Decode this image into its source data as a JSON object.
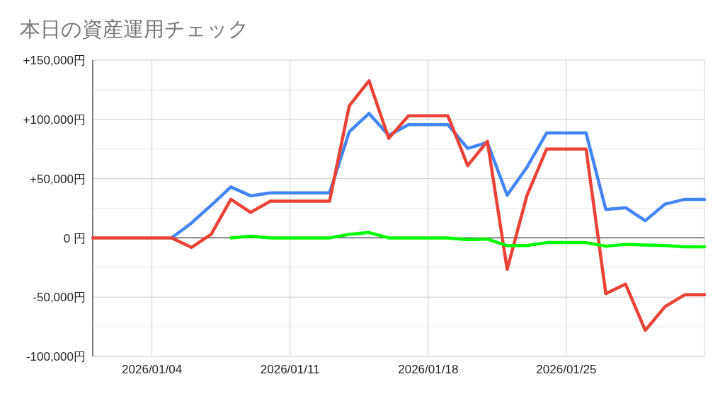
{
  "chart_data": {
    "type": "line",
    "title": "本日の資産運用チェック",
    "x": [
      "2026-01-01",
      "2026-01-02",
      "2026-01-03",
      "2026-01-04",
      "2026-01-05",
      "2026-01-06",
      "2026-01-07",
      "2026-01-08",
      "2026-01-09",
      "2026-01-10",
      "2026-01-11",
      "2026-01-12",
      "2026-01-13",
      "2026-01-14",
      "2026-01-15",
      "2026-01-16",
      "2026-01-17",
      "2026-01-18",
      "2026-01-19",
      "2026-01-20",
      "2026-01-21",
      "2026-01-22",
      "2026-01-23",
      "2026-01-24",
      "2026-01-25",
      "2026-01-26",
      "2026-01-27",
      "2026-01-28",
      "2026-01-29",
      "2026-01-30",
      "2026-01-31",
      "2026-02-01"
    ],
    "series": [
      {
        "color": "#4285f4",
        "values": [
          null,
          null,
          null,
          null,
          0,
          12500,
          27500,
          43000,
          35500,
          38000,
          38000,
          38000,
          38000,
          89500,
          105000,
          86500,
          95500,
          95500,
          95500,
          75500,
          80500,
          36000,
          59500,
          88500,
          88500,
          88500,
          24000,
          25500,
          14500,
          28500,
          32500,
          32500
        ]
      },
      {
        "color": "#ea4335",
        "values": [
          0,
          0,
          0,
          0,
          0,
          -8000,
          3000,
          32500,
          21500,
          31000,
          31000,
          31000,
          31000,
          111500,
          132500,
          84000,
          103000,
          103000,
          103000,
          61000,
          81500,
          -26500,
          35500,
          75000,
          75000,
          75000,
          -47000,
          -39000,
          -78000,
          -58000,
          -48000,
          -48000
        ]
      },
      {
        "color": "#00ff00",
        "values": [
          null,
          null,
          null,
          null,
          null,
          null,
          null,
          0,
          1500,
          0,
          0,
          0,
          0,
          3000,
          4500,
          0,
          0,
          0,
          0,
          -1500,
          -1000,
          -6500,
          -6500,
          -4000,
          -4000,
          -4000,
          -7000,
          -5500,
          -6000,
          -6500,
          -7500,
          -7500
        ]
      }
    ],
    "xlim": [
      "2026-01-01",
      "2026-02-01"
    ],
    "xticks": [
      {
        "value": "2026-01-04",
        "label": "2026/01/04"
      },
      {
        "value": "2026-01-11",
        "label": "2026/01/11"
      },
      {
        "value": "2026-01-18",
        "label": "2026/01/18"
      },
      {
        "value": "2026-01-25",
        "label": "2026/01/25"
      },
      {
        "value": "2026-02-01",
        "label": null
      }
    ],
    "ylim": [
      -100000,
      150000
    ],
    "yticks": [
      {
        "value": -100000,
        "label": "-100,000円"
      },
      {
        "value": -75000,
        "label": null
      },
      {
        "value": -50000,
        "label": "-50,000円"
      },
      {
        "value": -25000,
        "label": null
      },
      {
        "value": 0,
        "label": "0 円"
      },
      {
        "value": 25000,
        "label": null
      },
      {
        "value": 50000,
        "label": "+50,000円"
      },
      {
        "value": 75000,
        "label": null
      },
      {
        "value": 100000,
        "label": "+100,000円"
      },
      {
        "value": 125000,
        "label": null
      },
      {
        "value": 150000,
        "label": "+150,000円"
      }
    ],
    "ref_lines": [
      {
        "axis": "y",
        "value": 0,
        "color": "#333333"
      }
    ],
    "grid": true
  }
}
